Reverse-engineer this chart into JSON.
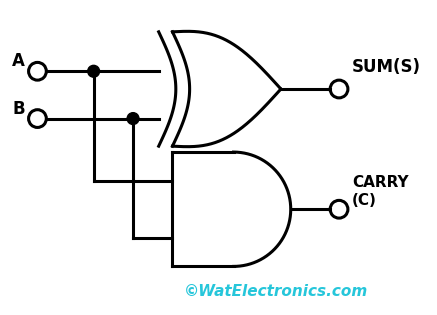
{
  "background_color": "#ffffff",
  "line_color": "#000000",
  "dot_color": "#000000",
  "label_A": "A",
  "label_B": "B",
  "label_SUM": "SUM(S)",
  "label_CARRY": "CARRY\n(C)",
  "watermark": "©WatElectronics.com",
  "watermark_color": "#26c6da",
  "label_fontsize": 12,
  "watermark_fontsize": 11,
  "lw": 2.2
}
